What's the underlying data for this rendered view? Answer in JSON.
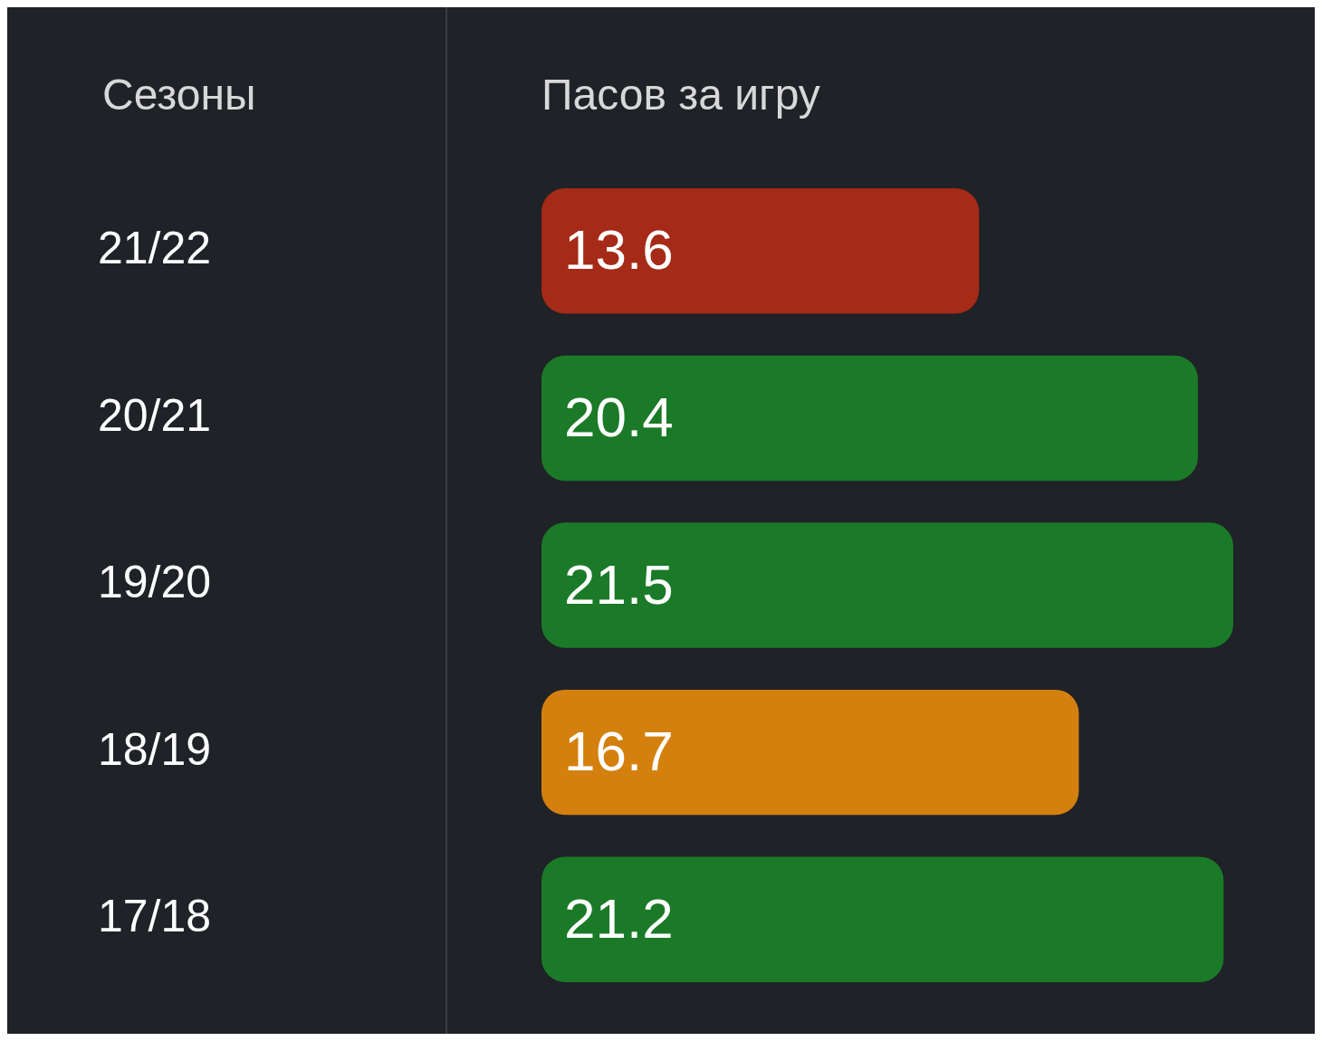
{
  "chart_data": {
    "type": "bar",
    "orientation": "horizontal",
    "ylabel": "Сезоны",
    "xlabel": "Пасов за игру",
    "categories": [
      "21/22",
      "20/21",
      "19/20",
      "18/19",
      "17/18"
    ],
    "values": [
      13.6,
      20.4,
      21.5,
      16.7,
      21.2
    ],
    "colors": [
      "#a52a17",
      "#1b7a28",
      "#1b7a28",
      "#d4800f",
      "#1b7a28"
    ],
    "xlim": [
      0,
      21.5
    ],
    "data_labels": true,
    "legend": false
  }
}
